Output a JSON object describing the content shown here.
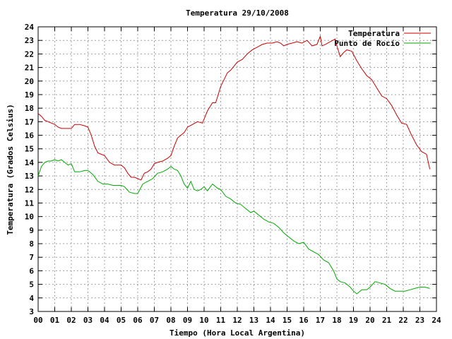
{
  "chart_data": {
    "type": "line",
    "title": "Temperatura 29/10/2008",
    "xlabel": "Tiempo (Hora Local Argentina)",
    "ylabel": "Temperatura (Grados Celsius)",
    "xlim": [
      0,
      24
    ],
    "ylim": [
      3,
      24
    ],
    "x_ticks": [
      "00",
      "01",
      "02",
      "03",
      "04",
      "05",
      "06",
      "07",
      "08",
      "09",
      "10",
      "11",
      "12",
      "13",
      "14",
      "15",
      "16",
      "17",
      "18",
      "19",
      "20",
      "21",
      "22",
      "23",
      "24"
    ],
    "y_ticks": [
      "3",
      "4",
      "5",
      "6",
      "7",
      "8",
      "9",
      "10",
      "11",
      "12",
      "13",
      "14",
      "15",
      "16",
      "17",
      "18",
      "19",
      "20",
      "21",
      "22",
      "23",
      "24"
    ],
    "grid": true,
    "legend_position": "top-right",
    "series": [
      {
        "name": "Temperatura",
        "color": "#cc0000",
        "x": [
          0,
          0.2,
          0.4,
          0.6,
          0.8,
          1.0,
          1.2,
          1.4,
          1.6,
          1.8,
          2.0,
          2.2,
          2.5,
          2.8,
          3.0,
          3.2,
          3.4,
          3.6,
          3.8,
          4.0,
          4.3,
          4.6,
          4.9,
          5.0,
          5.2,
          5.4,
          5.6,
          5.8,
          6.0,
          6.2,
          6.4,
          6.6,
          6.8,
          7.0,
          7.2,
          7.5,
          7.8,
          8.0,
          8.2,
          8.4,
          8.6,
          8.8,
          9.0,
          9.3,
          9.6,
          9.9,
          10.2,
          10.5,
          10.7,
          11.0,
          11.2,
          11.4,
          11.6,
          11.8,
          12.0,
          12.3,
          12.6,
          12.9,
          13.2,
          13.5,
          13.8,
          14.1,
          14.4,
          14.6,
          14.8,
          15.0,
          15.3,
          15.6,
          15.9,
          16.2,
          16.5,
          16.8,
          17.0,
          17.1,
          17.3,
          17.6,
          17.9,
          18.0,
          18.2,
          18.4,
          18.6,
          18.9,
          19.2,
          19.5,
          19.8,
          20.1,
          20.4,
          20.7,
          21.0,
          21.3,
          21.6,
          21.9,
          22.2,
          22.5,
          22.8,
          23.1,
          23.4,
          23.6
        ],
        "y": [
          17.6,
          17.4,
          17.1,
          17.0,
          16.9,
          16.8,
          16.6,
          16.5,
          16.5,
          16.5,
          16.5,
          16.8,
          16.8,
          16.7,
          16.6,
          16.0,
          15.2,
          14.7,
          14.6,
          14.5,
          14.0,
          13.8,
          13.8,
          13.8,
          13.6,
          13.2,
          12.9,
          12.9,
          12.8,
          12.7,
          13.2,
          13.3,
          13.5,
          13.9,
          14.0,
          14.1,
          14.3,
          14.5,
          15.2,
          15.8,
          16.0,
          16.2,
          16.6,
          16.8,
          17.0,
          16.9,
          17.8,
          18.4,
          18.4,
          19.6,
          20.1,
          20.6,
          20.8,
          21.1,
          21.4,
          21.6,
          22.0,
          22.3,
          22.5,
          22.7,
          22.8,
          22.8,
          22.9,
          22.8,
          22.6,
          22.7,
          22.8,
          22.9,
          22.8,
          23.0,
          22.6,
          22.7,
          23.3,
          22.6,
          22.7,
          22.9,
          23.1,
          22.6,
          21.8,
          22.1,
          22.3,
          22.2,
          21.5,
          20.9,
          20.4,
          20.1,
          19.5,
          18.9,
          18.7,
          18.2,
          17.5,
          16.9,
          16.8,
          16.0,
          15.3,
          14.8,
          14.6,
          13.5
        ]
      },
      {
        "name": "Punto de Rocío",
        "color": "#00aa00",
        "x": [
          0,
          0.2,
          0.4,
          0.6,
          0.8,
          1.0,
          1.2,
          1.4,
          1.6,
          1.8,
          2.0,
          2.2,
          2.5,
          2.8,
          3.0,
          3.3,
          3.6,
          3.9,
          4.2,
          4.5,
          4.8,
          5.0,
          5.2,
          5.5,
          5.8,
          6.0,
          6.3,
          6.6,
          6.9,
          7.2,
          7.5,
          7.8,
          8.0,
          8.2,
          8.4,
          8.6,
          8.8,
          9.0,
          9.2,
          9.4,
          9.6,
          9.8,
          10.0,
          10.2,
          10.5,
          10.8,
          11.0,
          11.3,
          11.6,
          11.9,
          12.2,
          12.5,
          12.8,
          13.0,
          13.3,
          13.6,
          13.9,
          14.2,
          14.5,
          14.8,
          15.1,
          15.4,
          15.7,
          16.0,
          16.3,
          16.6,
          16.9,
          17.2,
          17.5,
          17.8,
          18.0,
          18.2,
          18.5,
          18.8,
          19.0,
          19.2,
          19.5,
          19.8,
          20.0,
          20.3,
          20.6,
          20.9,
          21.2,
          21.5,
          21.8,
          22.1,
          22.4,
          22.7,
          23.0,
          23.3,
          23.6
        ],
        "y": [
          13.0,
          13.7,
          14.0,
          14.1,
          14.1,
          14.2,
          14.1,
          14.2,
          14.0,
          13.8,
          13.9,
          13.3,
          13.3,
          13.4,
          13.4,
          13.1,
          12.6,
          12.4,
          12.4,
          12.3,
          12.3,
          12.3,
          12.2,
          11.8,
          11.7,
          11.7,
          12.4,
          12.6,
          12.8,
          13.2,
          13.3,
          13.5,
          13.7,
          13.5,
          13.4,
          13.0,
          12.4,
          12.1,
          12.6,
          12.0,
          11.9,
          12.0,
          12.2,
          11.9,
          12.4,
          12.1,
          12.0,
          11.5,
          11.3,
          11.0,
          10.9,
          10.6,
          10.3,
          10.4,
          10.1,
          9.8,
          9.6,
          9.5,
          9.2,
          8.8,
          8.5,
          8.2,
          8.0,
          8.1,
          7.6,
          7.4,
          7.2,
          6.8,
          6.6,
          6.0,
          5.4,
          5.2,
          5.1,
          4.8,
          4.5,
          4.3,
          4.6,
          4.6,
          4.8,
          5.2,
          5.1,
          5.0,
          4.7,
          4.5,
          4.5,
          4.5,
          4.6,
          4.7,
          4.8,
          4.8,
          4.7
        ]
      }
    ]
  }
}
